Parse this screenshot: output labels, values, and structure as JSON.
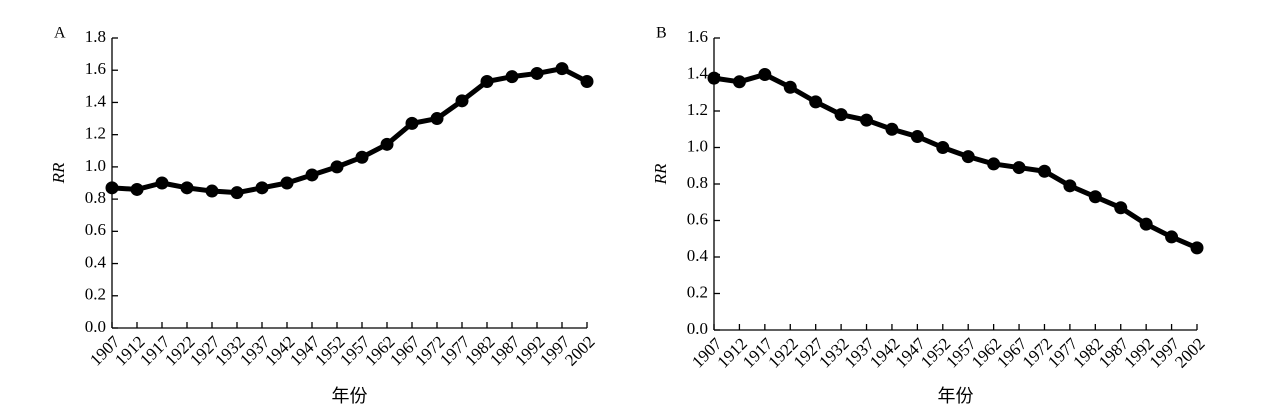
{
  "chart_data": [
    {
      "type": "line",
      "panel": "A",
      "ylabel": "RR",
      "xlabel": "年份",
      "categories": [
        "1907",
        "1912",
        "1917",
        "1922",
        "1927",
        "1932",
        "1937",
        "1942",
        "1947",
        "1952",
        "1957",
        "1962",
        "1967",
        "1972",
        "1977",
        "1982",
        "1987",
        "1992",
        "1997",
        "2002"
      ],
      "series": [
        {
          "color": "#000000",
          "values": [
            0.87,
            0.86,
            0.9,
            0.87,
            0.85,
            0.84,
            0.87,
            0.9,
            0.95,
            1.0,
            1.06,
            1.14,
            1.27,
            1.3,
            1.41,
            1.53,
            1.56,
            1.58,
            1.61,
            1.53
          ]
        }
      ],
      "ylim": [
        0,
        1.8
      ],
      "yticks": [
        {
          "value": 0,
          "label": "0.0"
        },
        0.2,
        0.4,
        0.6,
        0.8,
        {
          "value": 1,
          "label": "1.0"
        },
        1.2,
        1.4,
        1.6,
        1.8
      ]
    },
    {
      "type": "line",
      "panel": "B",
      "ylabel": "RR",
      "xlabel": "年份",
      "categories": [
        "1907",
        "1912",
        "1917",
        "1922",
        "1927",
        "1932",
        "1937",
        "1942",
        "1947",
        "1952",
        "1957",
        "1962",
        "1967",
        "1972",
        "1977",
        "1982",
        "1987",
        "1992",
        "1997",
        "2002"
      ],
      "series": [
        {
          "color": "#000000",
          "values": [
            1.38,
            1.36,
            1.4,
            1.33,
            1.25,
            1.18,
            1.15,
            1.1,
            1.06,
            1.0,
            0.95,
            0.91,
            0.89,
            0.87,
            0.79,
            0.73,
            0.67,
            0.58,
            0.51,
            0.45
          ]
        }
      ],
      "ylim": [
        0,
        1.6
      ],
      "yticks": [
        {
          "value": 0,
          "label": "0.0"
        },
        0.2,
        0.4,
        0.6,
        0.8,
        {
          "value": 1,
          "label": "1.0"
        },
        1.2,
        1.4,
        1.6
      ]
    }
  ]
}
